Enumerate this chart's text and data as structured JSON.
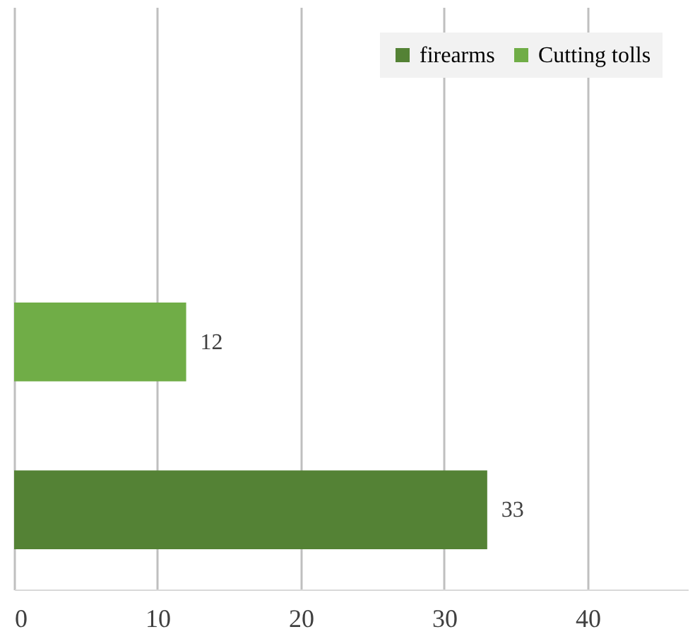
{
  "chart_data": {
    "type": "bar",
    "orientation": "horizontal",
    "categories": [
      null
    ],
    "series": [
      {
        "name": "firearms",
        "color": "#548235",
        "values": [
          33
        ]
      },
      {
        "name": "Cutting tolls",
        "color": "#70ad47",
        "values": [
          12
        ]
      }
    ],
    "xlim": [
      0,
      47
    ],
    "xticks": [
      0,
      10,
      20,
      30,
      40
    ],
    "grid": "x",
    "legend": "top right",
    "data_labels": true
  }
}
